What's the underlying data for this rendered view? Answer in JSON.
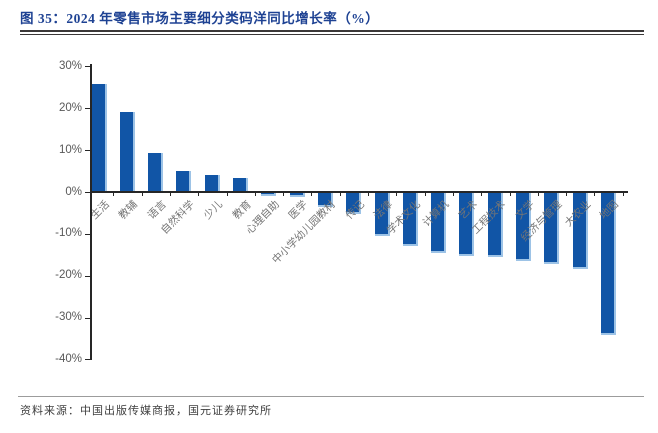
{
  "figure": {
    "title": "图 35：2024 年零售市场主要细分类码洋同比增长率（%）",
    "source": "资料来源：中国出版传媒商报，国元证券研究所"
  },
  "colors": {
    "bar": "#1155A6",
    "bar_edge": "#9DC3E6",
    "title_text": "#1E4293",
    "axis": "#262626",
    "ytick_label": "#595959",
    "category_label": "#757575"
  },
  "chart_data": {
    "type": "bar",
    "title": "2024 年零售市场主要细分类码洋同比增长率（%）",
    "categories": [
      "生活",
      "教辅",
      "语言",
      "自然科学",
      "少儿",
      "教育",
      "心理自助",
      "医学",
      "中小学幼儿园教材",
      "传记",
      "法律",
      "学术文化",
      "计算机",
      "艺术",
      "工程技术",
      "文学",
      "经济与管理",
      "大农业",
      "地图"
    ],
    "values": [
      25.9,
      19.0,
      9.2,
      4.9,
      4.1,
      3.4,
      -1.0,
      -1.1,
      -3.5,
      -5.2,
      -10.4,
      -12.9,
      -14.6,
      -15.2,
      -15.6,
      -16.4,
      -17.2,
      -18.4,
      -34.1
    ],
    "xlabel": "",
    "ylabel": "",
    "ylim": [
      -40,
      30
    ],
    "yticks": [
      30,
      20,
      10,
      0,
      -10,
      -20,
      -30,
      -40
    ],
    "ytick_suffix": "%",
    "grid": false,
    "legend_position": "none",
    "bar_color": "#1155A6"
  }
}
